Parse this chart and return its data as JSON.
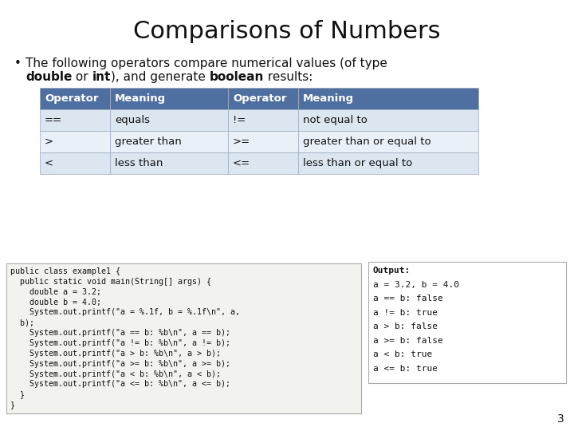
{
  "title": "Comparisons of Numbers",
  "bg_color": "#ffffff",
  "title_fontsize": 22,
  "bullet_line1": "The following operators compare numerical values (of type",
  "bullet_bold1": "double",
  "bullet_normal1": " or ",
  "bullet_bold2": "int",
  "bullet_normal2": "), and generate ",
  "bullet_bold3": "boolean",
  "bullet_normal3": " results:",
  "bullet_fontsize": 11,
  "table_header_bg": "#4f6fa0",
  "table_header_color": "#ffffff",
  "table_row_odd": "#dce6f1",
  "table_row_even": "#eaf0f8",
  "table_border": "#9aaabf",
  "table_headers": [
    "Operator",
    "Meaning",
    "Operator",
    "Meaning"
  ],
  "table_data": [
    [
      "==",
      "equals",
      "!=",
      "not equal to"
    ],
    [
      ">",
      "greater than",
      ">=",
      "greater than or equal to"
    ],
    [
      "<",
      "less than",
      "<=",
      "less than or equal to"
    ]
  ],
  "table_header_fontsize": 9.5,
  "table_cell_fontsize": 9.5,
  "code_bg": "#f2f2ee",
  "code_border": "#aaaaaa",
  "code_lines": [
    "public class example1 {",
    "  public static void main(String[] args) {",
    "    double a = 3.2;",
    "    double b = 4.0;",
    "    System.out.printf(\"a = %.1f, b = %.1f\\n\", a,",
    "  b);",
    "    System.out.printf(\"a == b: %b\\n\", a == b);",
    "    System.out.printf(\"a != b: %b\\n\", a != b);",
    "    System.out.printf(\"a > b: %b\\n\", a > b);",
    "    System.out.printf(\"a >= b: %b\\n\", a >= b);",
    "    System.out.printf(\"a < b: %b\\n\", a < b);",
    "    System.out.printf(\"a <= b: %b\\n\", a <= b);",
    "  }",
    "}"
  ],
  "code_fontsize": 7.2,
  "output_bg": "#ffffff",
  "output_border": "#aaaaaa",
  "output_header": "Output:",
  "output_lines": [
    "a = 3.2, b = 4.0",
    "a == b: false",
    "a != b: true",
    "a > b: false",
    "a >= b: false",
    "a < b: true",
    "a <= b: true"
  ],
  "output_fontsize": 8.0,
  "page_number": "3",
  "page_num_fontsize": 10
}
